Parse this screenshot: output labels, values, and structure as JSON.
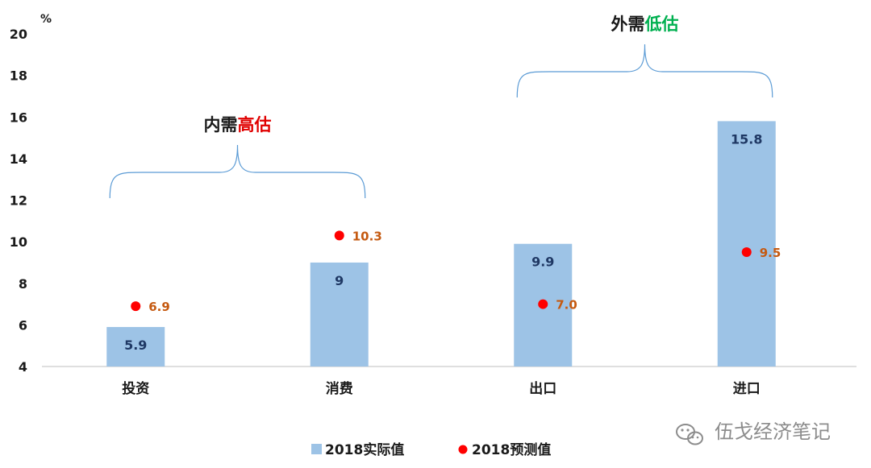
{
  "chart_data": {
    "type": "bar",
    "categories": [
      "投资",
      "消费",
      "出口",
      "进口"
    ],
    "ylabel": "%",
    "ylim": [
      4,
      20
    ],
    "yticks": [
      4,
      6,
      8,
      10,
      12,
      14,
      16,
      18,
      20
    ],
    "grid": false,
    "legend_position": "bottom",
    "series": [
      {
        "name": "2018实际值",
        "type": "bar",
        "color": "#9dc3e6",
        "values": [
          5.9,
          9,
          9.9,
          15.8
        ],
        "labels": [
          "5.9",
          "9",
          "9.9",
          "15.8"
        ]
      },
      {
        "name": "2018预测值",
        "type": "scatter",
        "color": "#ff0000",
        "values": [
          6.9,
          10.3,
          7.0,
          9.5
        ],
        "labels": [
          "6.9",
          "10.3",
          "7.0",
          "9.5"
        ]
      }
    ],
    "annotations": [
      {
        "id": "domestic",
        "prefix": "内需",
        "highlight": "高估",
        "highlight_color": "#e00000",
        "spans": [
          "投资",
          "消费"
        ]
      },
      {
        "id": "external",
        "prefix": "外需",
        "highlight": "低估",
        "highlight_color": "#00b050",
        "spans": [
          "出口",
          "进口"
        ]
      }
    ]
  },
  "watermark": {
    "text": "伍戈经济笔记",
    "icon": "wechat-icon"
  }
}
